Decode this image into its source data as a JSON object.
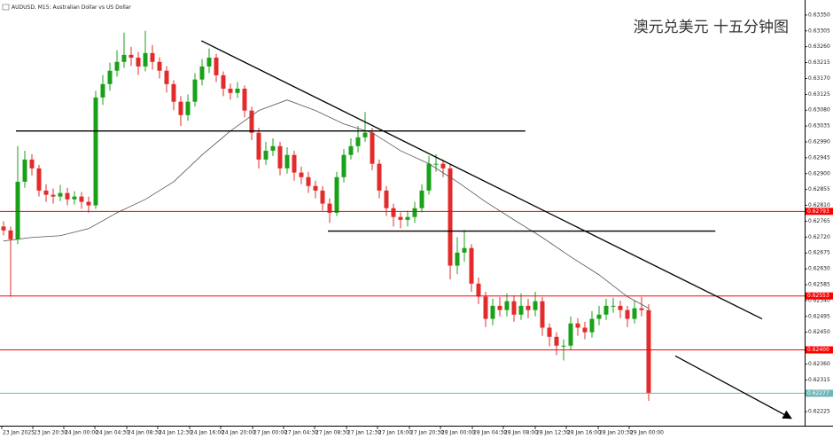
{
  "chart_data": {
    "type": "candlestick",
    "title": "AUDUSD, M15: Australian Dollar vs US Dollar",
    "subtitle": "澳元兑美元 十五分钟图",
    "up_color": "#19a119",
    "down_color": "#e32b2b",
    "xlim": [
      -0.5,
      113
    ],
    "ylim": [
      0.6219,
      0.6338
    ],
    "yticks": [
      {
        "value": 0.6335,
        "label": "0.63350"
      },
      0.63305,
      {
        "value": 0.6326,
        "label": "0.63260"
      },
      0.63215,
      {
        "value": 0.6317,
        "label": "0.63170"
      },
      0.63125,
      {
        "value": 0.6308,
        "label": "0.63080"
      },
      0.63035,
      {
        "value": 0.6299,
        "label": "0.62990"
      },
      0.62945,
      {
        "value": 0.629,
        "label": "0.62900"
      },
      0.62855,
      {
        "value": 0.6281,
        "label": "0.62810"
      },
      0.62765,
      {
        "value": 0.6272,
        "label": "0.62720"
      },
      0.62675,
      {
        "value": 0.6263,
        "label": "0.62630"
      },
      0.62585,
      {
        "value": 0.6254,
        "label": "0.62540"
      },
      0.62495,
      {
        "value": 0.6245,
        "label": "0.62450"
      },
      {
        "value": 0.6236,
        "label": "0.62360"
      },
      0.62315,
      0.62225
    ],
    "xticks": [
      {
        "value": -0.25,
        "label": "23 Jan 2025"
      },
      {
        "value": 4.13,
        "label": "23 Jan 20:30"
      },
      {
        "value": 8.5,
        "label": "24 Jan 00:00"
      },
      {
        "value": 12.88,
        "label": "24 Jan 04:30"
      },
      {
        "value": 17.38,
        "label": "24 Jan 08:30"
      },
      {
        "value": 21.75,
        "label": "24 Jan 12:30"
      },
      {
        "value": 26.25,
        "label": "24 Jan 16:00"
      },
      {
        "value": 30.63,
        "label": "24 Jan 20:00"
      },
      {
        "value": 35.13,
        "label": "27 Jan 00:00"
      },
      {
        "value": 39.5,
        "label": "27 Jan 04:30"
      },
      {
        "value": 43.88,
        "label": "27 Jan 08:30"
      },
      {
        "value": 48.38,
        "label": "27 Jan 12:30"
      },
      {
        "value": 52.75,
        "label": "27 Jan 16:00"
      },
      {
        "value": 57.25,
        "label": "27 Jan 20:30"
      },
      {
        "value": 61.63,
        "label": "28 Jan 00:00"
      },
      {
        "value": 66.13,
        "label": "28 Jan 04:30"
      },
      {
        "value": 70.5,
        "label": "28 Jan 08:00"
      },
      {
        "value": 75,
        "label": "28 Jan 12:30"
      },
      {
        "value": 79.38,
        "label": "28 Jan 16:00"
      },
      {
        "value": 83.88,
        "label": "28 Jan 20:30"
      },
      {
        "value": 88.25,
        "label": "29 Jan 00:00"
      }
    ],
    "candles": [
      [
        0.6275,
        0.62765,
        0.62725,
        0.62739
      ],
      [
        0.62739,
        0.6275,
        0.62551,
        0.62714
      ],
      [
        0.62714,
        0.62978,
        0.627,
        0.62877
      ],
      [
        0.62877,
        0.62965,
        0.6286,
        0.6294
      ],
      [
        0.6294,
        0.62955,
        0.62895,
        0.62915
      ],
      [
        0.62915,
        0.62925,
        0.62835,
        0.62852
      ],
      [
        0.62852,
        0.6287,
        0.6282,
        0.6284
      ],
      [
        0.6284,
        0.62858,
        0.62815,
        0.62835
      ],
      [
        0.62835,
        0.62868,
        0.62822,
        0.62845
      ],
      [
        0.62845,
        0.6286,
        0.6281,
        0.62827
      ],
      [
        0.62827,
        0.6285,
        0.62812,
        0.62835
      ],
      [
        0.62835,
        0.62848,
        0.628,
        0.6282
      ],
      [
        0.6282,
        0.62835,
        0.62789,
        0.6281
      ],
      [
        0.6281,
        0.63135,
        0.628,
        0.63116
      ],
      [
        0.63116,
        0.6318,
        0.63095,
        0.63154
      ],
      [
        0.63154,
        0.63215,
        0.63135,
        0.63192
      ],
      [
        0.63192,
        0.6325,
        0.63175,
        0.63217
      ],
      [
        0.63217,
        0.633,
        0.632,
        0.63237
      ],
      [
        0.63237,
        0.6326,
        0.63205,
        0.63229
      ],
      [
        0.63229,
        0.63245,
        0.6318,
        0.63204
      ],
      [
        0.63204,
        0.63305,
        0.6319,
        0.63242
      ],
      [
        0.63242,
        0.63265,
        0.63195,
        0.63217
      ],
      [
        0.63217,
        0.6323,
        0.6317,
        0.63192
      ],
      [
        0.63192,
        0.63205,
        0.6313,
        0.63154
      ],
      [
        0.63154,
        0.63165,
        0.6308,
        0.63104
      ],
      [
        0.63104,
        0.6312,
        0.63035,
        0.63066
      ],
      [
        0.63066,
        0.63125,
        0.6305,
        0.63104
      ],
      [
        0.63104,
        0.63185,
        0.6309,
        0.63167
      ],
      [
        0.63167,
        0.63225,
        0.6315,
        0.63204
      ],
      [
        0.63204,
        0.63255,
        0.63185,
        0.63229
      ],
      [
        0.63229,
        0.6324,
        0.6316,
        0.63179
      ],
      [
        0.63179,
        0.6319,
        0.6312,
        0.63141
      ],
      [
        0.63141,
        0.63155,
        0.6311,
        0.63129
      ],
      [
        0.63129,
        0.6316,
        0.63115,
        0.63141
      ],
      [
        0.63141,
        0.6315,
        0.6306,
        0.63079
      ],
      [
        0.63079,
        0.6309,
        0.62995,
        0.63016
      ],
      [
        0.63016,
        0.6303,
        0.62915,
        0.6294
      ],
      [
        0.6294,
        0.6299,
        0.62925,
        0.62965
      ],
      [
        0.62965,
        0.63,
        0.6295,
        0.62978
      ],
      [
        0.62978,
        0.6299,
        0.62895,
        0.62915
      ],
      [
        0.62915,
        0.62975,
        0.629,
        0.62953
      ],
      [
        0.62953,
        0.62965,
        0.6288,
        0.62903
      ],
      [
        0.62903,
        0.6292,
        0.6287,
        0.6289
      ],
      [
        0.6289,
        0.62905,
        0.62845,
        0.62865
      ],
      [
        0.62865,
        0.6288,
        0.6283,
        0.62852
      ],
      [
        0.62852,
        0.62865,
        0.62795,
        0.62815
      ],
      [
        0.62815,
        0.6283,
        0.6276,
        0.62789
      ],
      [
        0.62789,
        0.62905,
        0.6278,
        0.6289
      ],
      [
        0.6289,
        0.6297,
        0.62875,
        0.62953
      ],
      [
        0.62953,
        0.63,
        0.6294,
        0.62978
      ],
      [
        0.62978,
        0.63035,
        0.6296,
        0.63003
      ],
      [
        0.63003,
        0.63075,
        0.6299,
        0.63016
      ],
      [
        0.63016,
        0.6303,
        0.6291,
        0.62928
      ],
      [
        0.62928,
        0.6294,
        0.6283,
        0.62852
      ],
      [
        0.62852,
        0.62865,
        0.6278,
        0.62802
      ],
      [
        0.62802,
        0.62815,
        0.6275,
        0.62777
      ],
      [
        0.62777,
        0.6279,
        0.62745,
        0.62769
      ],
      [
        0.62769,
        0.62795,
        0.6275,
        0.62777
      ],
      [
        0.62777,
        0.6282,
        0.6276,
        0.62802
      ],
      [
        0.62802,
        0.6287,
        0.6279,
        0.62852
      ],
      [
        0.62852,
        0.6295,
        0.6284,
        0.62928
      ],
      [
        0.62928,
        0.62955,
        0.62905,
        0.62928
      ],
      [
        0.62928,
        0.6294,
        0.6289,
        0.62915
      ],
      [
        0.62915,
        0.62925,
        0.626,
        0.62639
      ],
      [
        0.62639,
        0.6272,
        0.62615,
        0.62676
      ],
      [
        0.62676,
        0.6274,
        0.6265,
        0.62689
      ],
      [
        0.62689,
        0.627,
        0.62565,
        0.62588
      ],
      [
        0.62588,
        0.62605,
        0.6253,
        0.62551
      ],
      [
        0.62551,
        0.62565,
        0.62465,
        0.62488
      ],
      [
        0.62488,
        0.62545,
        0.6247,
        0.62525
      ],
      [
        0.62525,
        0.6255,
        0.62495,
        0.62513
      ],
      [
        0.62513,
        0.6256,
        0.62495,
        0.62538
      ],
      [
        0.62538,
        0.62555,
        0.6248,
        0.625
      ],
      [
        0.625,
        0.6256,
        0.62485,
        0.62525
      ],
      [
        0.62525,
        0.62545,
        0.6249,
        0.62513
      ],
      [
        0.62513,
        0.62565,
        0.62495,
        0.62538
      ],
      [
        0.62538,
        0.6255,
        0.6244,
        0.62463
      ],
      [
        0.62463,
        0.62475,
        0.6241,
        0.62437
      ],
      [
        0.62437,
        0.6245,
        0.62385,
        0.62412
      ],
      [
        0.62412,
        0.6243,
        0.6237,
        0.62412
      ],
      [
        0.62412,
        0.62495,
        0.624,
        0.62475
      ],
      [
        0.62475,
        0.6249,
        0.6244,
        0.62463
      ],
      [
        0.62463,
        0.6248,
        0.6243,
        0.6245
      ],
      [
        0.6245,
        0.6251,
        0.62435,
        0.62488
      ],
      [
        0.62488,
        0.62525,
        0.6247,
        0.625
      ],
      [
        0.625,
        0.62545,
        0.62485,
        0.62525
      ],
      [
        0.62525,
        0.62548,
        0.62505,
        0.62525
      ],
      [
        0.62525,
        0.6254,
        0.6249,
        0.62513
      ],
      [
        0.62513,
        0.62525,
        0.62465,
        0.62488
      ],
      [
        0.62488,
        0.6254,
        0.62475,
        0.62518
      ],
      [
        0.62518,
        0.6255,
        0.62495,
        0.62513
      ],
      [
        0.62513,
        0.6253,
        0.62255,
        0.62277
      ]
    ],
    "moving_average": {
      "color": "#555555",
      "x": [
        0,
        4,
        8,
        12,
        16,
        20,
        24,
        28,
        32,
        36,
        40,
        44,
        48,
        52,
        56,
        60,
        64,
        68,
        72,
        76,
        80,
        84,
        88,
        91
      ],
      "values": [
        0.62709,
        0.62719,
        0.62724,
        0.62744,
        0.62789,
        0.62827,
        0.62877,
        0.62953,
        0.63021,
        0.63079,
        0.63109,
        0.63079,
        0.63041,
        0.63016,
        0.62965,
        0.62928,
        0.62877,
        0.6282,
        0.62769,
        0.62719,
        0.62664,
        0.62613,
        0.62551,
        0.62518
      ]
    },
    "levels": [
      {
        "value": 0.62793,
        "color": "#ff0000"
      },
      {
        "value": 0.62553,
        "color": "#ff0000"
      },
      {
        "value": 0.624,
        "label": "0.62400",
        "color": "#ff0000"
      },
      {
        "value": 0.62277,
        "color": "#6fb7b7"
      }
    ],
    "drawn_lines": [
      {
        "x": [
          1.75,
          73.6
        ],
        "y": [
          0.63021,
          0.63021
        ]
      },
      {
        "x": [
          45.75,
          100.4
        ],
        "y": [
          0.62737,
          0.62737
        ]
      },
      {
        "x": [
          27.9,
          107
        ],
        "y": [
          0.63277,
          0.62488
        ]
      },
      {
        "x": [
          94.75,
          111.1
        ],
        "y": [
          0.62383,
          0.62206
        ],
        "arrow": true
      }
    ]
  }
}
